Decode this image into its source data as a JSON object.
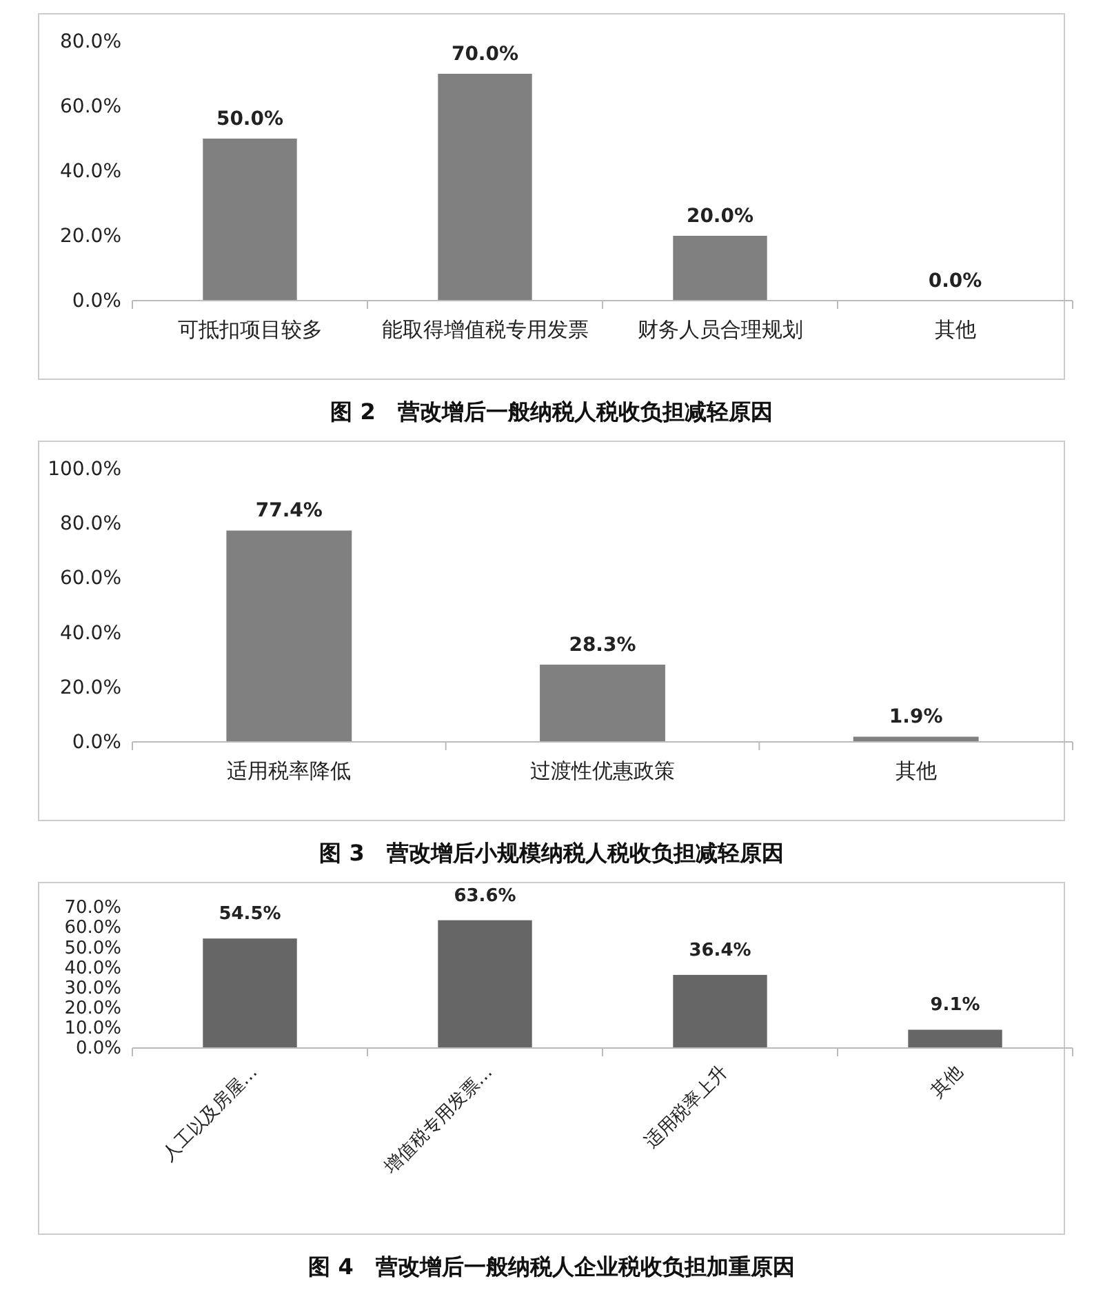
{
  "chart_data": [
    {
      "type": "bar",
      "title": "图 2　营改增后一般纳税人税收负担减轻原因",
      "categories": [
        "可抵扣项目较多",
        "能取得增值税专用发票",
        "财务人员合理规划",
        "其他"
      ],
      "values": [
        50,
        70,
        20,
        0
      ],
      "value_labels": [
        "50.0%",
        "70.0%",
        "20.0%",
        "0.0%"
      ],
      "color": "#808080",
      "ylim": [
        0,
        80
      ],
      "yticks": [
        {
          "value": 0,
          "label": "0.0%"
        },
        {
          "value": 20,
          "label": "20.0%"
        },
        {
          "value": 40,
          "label": "40.0%"
        },
        {
          "value": 60,
          "label": "60.0%"
        },
        {
          "value": 80,
          "label": "80.0%"
        }
      ]
    },
    {
      "type": "bar",
      "title": "图 3　营改增后小规模纳税人税收负担减轻原因",
      "categories": [
        "适用税率降低",
        "过渡性优惠政策",
        "其他"
      ],
      "values": [
        77.4,
        28.3,
        1.9
      ],
      "value_labels": [
        "77.4%",
        "28.3%",
        "1.9%"
      ],
      "color": "#808080",
      "ylim": [
        0,
        100
      ],
      "yticks": [
        {
          "value": 0,
          "label": "0.0%"
        },
        {
          "value": 20,
          "label": "20.0%"
        },
        {
          "value": 40,
          "label": "40.0%"
        },
        {
          "value": 60,
          "label": "60.0%"
        },
        {
          "value": 80,
          "label": "80.0%"
        },
        {
          "value": 100,
          "label": "100.0%"
        }
      ]
    },
    {
      "type": "bar",
      "title": "图 4　营改增后一般纳税人企业税收负担加重原因",
      "categories": [
        "人工以及房屋…",
        "增值税专用发票…",
        "适用税率上升",
        "其他"
      ],
      "values": [
        54.5,
        63.6,
        36.4,
        9.1
      ],
      "value_labels": [
        "54.5%",
        "63.6%",
        "36.4%",
        "9.1%"
      ],
      "color": "#666666",
      "ylim": [
        0,
        70
      ],
      "yticks": [
        {
          "value": 0,
          "label": "0.0%"
        },
        {
          "value": 10,
          "label": "10.0%"
        },
        {
          "value": 20,
          "label": "20.0%"
        },
        {
          "value": 30,
          "label": "30.0%"
        },
        {
          "value": 40,
          "label": "40.0%"
        },
        {
          "value": 50,
          "label": "50.0%"
        },
        {
          "value": 60,
          "label": "60.0%"
        },
        {
          "value": 70,
          "label": "70.0%"
        }
      ]
    }
  ]
}
